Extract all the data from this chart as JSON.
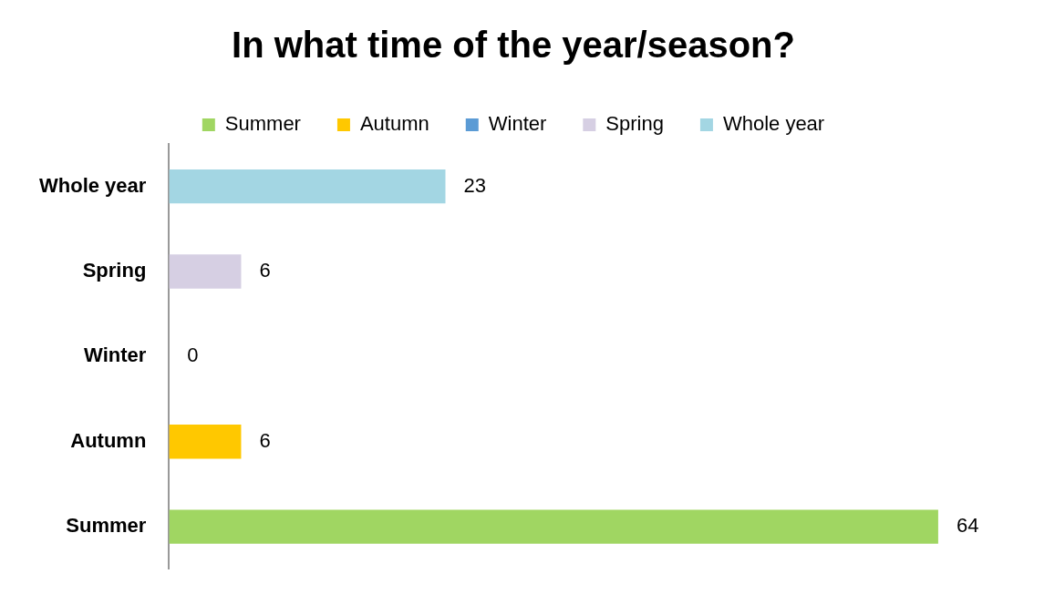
{
  "chart_data": {
    "type": "bar",
    "orientation": "horizontal",
    "title": "In what time of the year/season?",
    "categories": [
      "Whole year",
      "Spring",
      "Winter",
      "Autumn",
      "Summer"
    ],
    "series": [
      {
        "name": "Summer",
        "color": "#a0d662",
        "values": [
          null,
          null,
          null,
          null,
          64
        ]
      },
      {
        "name": "Autumn",
        "color": "#ffc800",
        "values": [
          null,
          null,
          null,
          6,
          null
        ]
      },
      {
        "name": "Winter",
        "color": "#5b9bd5",
        "values": [
          null,
          null,
          0,
          null,
          null
        ]
      },
      {
        "name": "Spring",
        "color": "#d6cfe3",
        "values": [
          null,
          6,
          null,
          null,
          null
        ]
      },
      {
        "name": "Whole year",
        "color": "#a3d6e3",
        "values": [
          23,
          null,
          null,
          null,
          null
        ]
      }
    ],
    "tick_labels": "y",
    "data_labels": true,
    "legend": "top"
  }
}
